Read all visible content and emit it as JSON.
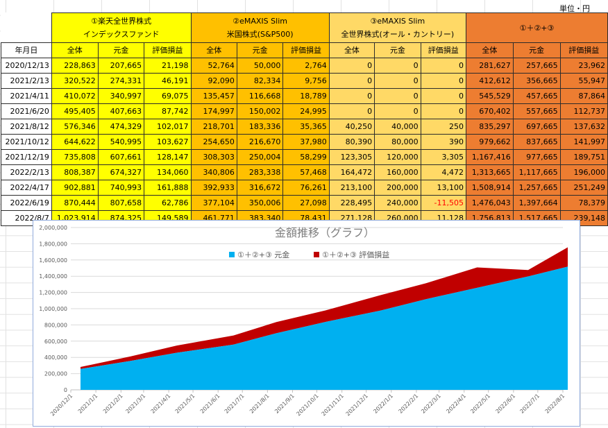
{
  "unit_label": "単位・円",
  "table": {
    "date_header": "年月日",
    "groups": [
      {
        "line1": "①楽天全世界株式",
        "line2": "インデックスファンド",
        "color": "#ffff00"
      },
      {
        "line1": "②eMAXIS Slim",
        "line2": "米国株式(S&P500)",
        "color": "#ffc000"
      },
      {
        "line1": "③eMAXIS Slim",
        "line2": "全世界株式(オール・カントリー)",
        "color": "#ffd966"
      },
      {
        "line1": "①＋②+③",
        "line2": "",
        "color": "#ed7d31"
      }
    ],
    "subheaders": [
      "全体",
      "元金",
      "評価損益"
    ],
    "rows": [
      {
        "date": "2020/12/13",
        "v": [
          "228,863",
          "207,665",
          "21,198",
          "52,764",
          "50,000",
          "2,764",
          "0",
          "0",
          "0",
          "281,627",
          "257,665",
          "23,962"
        ]
      },
      {
        "date": "2021/2/13",
        "v": [
          "320,522",
          "274,331",
          "46,191",
          "92,090",
          "82,334",
          "9,756",
          "0",
          "0",
          "0",
          "412,612",
          "356,665",
          "55,947"
        ]
      },
      {
        "date": "2021/4/11",
        "v": [
          "410,072",
          "340,997",
          "69,075",
          "135,457",
          "116,668",
          "18,789",
          "0",
          "0",
          "0",
          "545,529",
          "457,665",
          "87,864"
        ]
      },
      {
        "date": "2021/6/20",
        "v": [
          "495,405",
          "407,663",
          "87,742",
          "174,997",
          "150,002",
          "24,995",
          "0",
          "0",
          "0",
          "670,402",
          "557,665",
          "112,737"
        ]
      },
      {
        "date": "2021/8/12",
        "v": [
          "576,346",
          "474,329",
          "102,017",
          "218,701",
          "183,336",
          "35,365",
          "40,250",
          "40,000",
          "250",
          "835,297",
          "697,665",
          "137,632"
        ]
      },
      {
        "date": "2021/10/12",
        "v": [
          "644,622",
          "540,995",
          "103,627",
          "254,650",
          "216,670",
          "37,980",
          "80,390",
          "80,000",
          "390",
          "979,662",
          "837,665",
          "141,997"
        ]
      },
      {
        "date": "2021/12/19",
        "v": [
          "735,808",
          "607,661",
          "128,147",
          "308,303",
          "250,004",
          "58,299",
          "123,305",
          "120,000",
          "3,305",
          "1,167,416",
          "977,665",
          "189,751"
        ]
      },
      {
        "date": "2022/2/13",
        "v": [
          "808,387",
          "674,327",
          "134,060",
          "340,806",
          "283,338",
          "57,468",
          "164,472",
          "160,000",
          "4,472",
          "1,313,665",
          "1,117,665",
          "196,000"
        ]
      },
      {
        "date": "2022/4/17",
        "v": [
          "902,881",
          "740,993",
          "161,888",
          "392,933",
          "316,672",
          "76,261",
          "213,100",
          "200,000",
          "13,100",
          "1,508,914",
          "1,257,665",
          "251,249"
        ]
      },
      {
        "date": "2022/6/19",
        "v": [
          "870,444",
          "807,658",
          "62,786",
          "377,104",
          "350,006",
          "27,098",
          "228,495",
          "240,000",
          "-11,505",
          "1,476,043",
          "1,397,664",
          "78,379"
        ]
      },
      {
        "date": "2022/8/7",
        "v": [
          "1,023,914",
          "874,325",
          "149,589",
          "461,771",
          "383,340",
          "78,431",
          "271,128",
          "260,000",
          "11,128",
          "1,756,813",
          "1,517,665",
          "239,148"
        ]
      }
    ]
  },
  "chart_data": {
    "type": "area",
    "stacked": true,
    "title": "金額推移（グラフ）",
    "legend_position": "top",
    "x": [
      "2020/12/13",
      "2021/2/13",
      "2021/4/11",
      "2021/6/20",
      "2021/8/12",
      "2021/10/12",
      "2021/12/19",
      "2022/2/13",
      "2022/4/17",
      "2022/6/19",
      "2022/8/7"
    ],
    "x_ticks": [
      "2020/12/1",
      "2021/1/1",
      "2021/2/1",
      "2021/3/1",
      "2021/4/1",
      "2021/5/1",
      "2021/6/1",
      "2021/7/1",
      "2021/8/1",
      "2021/9/1",
      "2021/10/1",
      "2021/11/1",
      "2021/12/1",
      "2022/1/1",
      "2022/2/1",
      "2022/3/1",
      "2022/4/1",
      "2022/5/1",
      "2022/6/1",
      "2022/7/1",
      "2022/8/1"
    ],
    "series": [
      {
        "name": "①＋②+③ 元金",
        "color": "#00b0f0",
        "values": [
          257665,
          356665,
          457665,
          557665,
          697665,
          837665,
          977665,
          1117665,
          1257665,
          1397664,
          1517665
        ]
      },
      {
        "name": "①＋②+③ 評価損益",
        "color": "#c00000",
        "values": [
          23962,
          55947,
          87864,
          112737,
          137632,
          141997,
          189751,
          196000,
          251249,
          78379,
          239148
        ]
      }
    ],
    "ylim": [
      0,
      2000000
    ],
    "y_ticks": [
      "0",
      "200,000",
      "400,000",
      "600,000",
      "800,000",
      "1,000,000",
      "1,200,000",
      "1,400,000",
      "1,600,000",
      "1,800,000",
      "2,000,000"
    ],
    "grid": true
  }
}
